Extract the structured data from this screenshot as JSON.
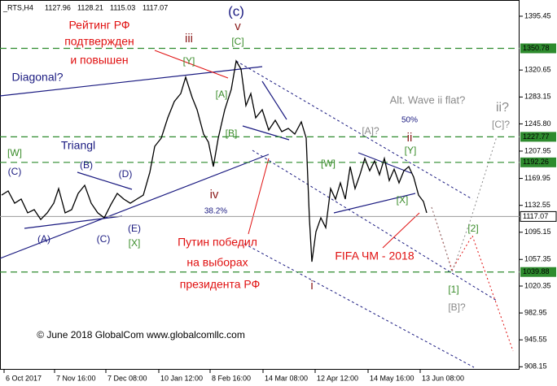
{
  "chart_data": {
    "type": "line",
    "symbol": "_RTS,H4",
    "ohlc": [
      1127.96,
      1128.21,
      1115.03,
      1117.07
    ],
    "xlim": [
      0,
      638
    ],
    "ylim": [
      904,
      1418
    ],
    "xticks": [
      {
        "value": 5,
        "label": "6 Oct 2017"
      },
      {
        "value": 67,
        "label": "7 Nov 16:00"
      },
      {
        "value": 130,
        "label": "7 Dec 08:00"
      },
      {
        "value": 195,
        "label": "10 Jan 12:00"
      },
      {
        "value": 258,
        "label": "8 Feb 16:00"
      },
      {
        "value": 323,
        "label": "14 Mar 08:00"
      },
      {
        "value": 387,
        "label": "12 Apr 12:00"
      },
      {
        "value": 452,
        "label": "14 May 16:00"
      },
      {
        "value": 516,
        "label": "13 Jun 08:00"
      }
    ],
    "yticks": [
      1395.45,
      1320.65,
      1283.15,
      {
        "value": 1245.8,
        "label": "1245.80"
      },
      1207.95,
      1169.95,
      1132.55,
      1095.15,
      1057.35,
      1020.35,
      982.95,
      945.55,
      908.15
    ],
    "levels": [
      1350.78,
      1227.77,
      1192.26,
      1039.88
    ],
    "level_color": "#2e8b2e",
    "grid": false,
    "x": [
      2,
      10,
      18,
      26,
      34,
      42,
      50,
      58,
      66,
      72,
      80,
      88,
      96,
      104,
      112,
      120,
      128,
      136,
      144,
      152,
      160,
      168,
      176,
      184,
      190,
      198,
      206,
      214,
      222,
      228,
      236,
      242,
      250,
      256,
      262,
      268,
      276,
      284,
      290,
      296,
      302,
      308,
      314,
      322,
      330,
      338,
      346,
      354,
      362,
      370,
      376,
      380,
      383,
      388,
      394,
      400,
      406,
      412,
      418,
      424,
      430,
      436,
      442,
      448,
      454,
      460,
      466,
      472,
      478,
      484,
      490,
      496,
      502,
      508,
      514,
      520,
      524
    ],
    "series": [
      {
        "color": "#000000",
        "values": [
          1146.8,
          1152.5,
          1135.5,
          1141.2,
          1122.1,
          1126.5,
          1112.9,
          1122.1,
          1135.5,
          1155.8,
          1122.1,
          1126.5,
          1149.1,
          1160.4,
          1135.5,
          1122.1,
          1115.2,
          1133.2,
          1149.1,
          1141.2,
          1135.5,
          1141.2,
          1146.8,
          1178.4,
          1214.6,
          1225.9,
          1254.2,
          1276.8,
          1288.0,
          1310.7,
          1282.4,
          1265.5,
          1231.6,
          1220.3,
          1186.4,
          1225.9,
          1265.5,
          1293.7,
          1333.3,
          1322.0,
          1271.1,
          1288.0,
          1254.2,
          1265.5,
          1237.2,
          1250.8,
          1235.0,
          1239.5,
          1231.6,
          1248.5,
          1225.9,
          1112.9,
          1054.1,
          1095.9,
          1115.2,
          1101.6,
          1155.8,
          1141.2,
          1163.8,
          1141.2,
          1186.4,
          1155.8,
          1175.1,
          1197.7,
          1180.7,
          1194.3,
          1175.1,
          1197.7,
          1167.1,
          1182.9,
          1163.8,
          1180.7,
          1186.4,
          1171.7,
          1146.8,
          1137.8,
          1122.1
        ]
      }
    ],
    "annotations": [
      {
        "text": "(c)",
        "color": "#1a1a80"
      },
      {
        "text": "v",
        "color": "#8b1a1a"
      },
      {
        "text": "[C]",
        "color": "#3a8c2a"
      },
      {
        "text": "iii",
        "color": "#8b1a1a"
      },
      {
        "text": "[Y]",
        "color": "#3a8c2a"
      },
      {
        "text": "[A]",
        "color": "#3a8c2a"
      },
      {
        "text": "[B]",
        "color": "#3a8c2a"
      },
      {
        "text": "Рейтинг РФ",
        "color": "#e01010"
      },
      {
        "text": "подтвержден",
        "color": "#e01010"
      },
      {
        "text": "и повышен",
        "color": "#e01010"
      },
      {
        "text": "Diagonal?",
        "color": "#1a1a80"
      },
      {
        "text": "[W]",
        "color": "#3a8c2a"
      },
      {
        "text": "(C)",
        "color": "#1a1a80"
      },
      {
        "text": "Triangl",
        "color": "#1a1a80"
      },
      {
        "text": "(B)",
        "color": "#1a1a80"
      },
      {
        "text": "(D)",
        "color": "#1a1a80"
      },
      {
        "text": "(A)",
        "color": "#1a1a80"
      },
      {
        "text": "(C)",
        "color": "#1a1a80"
      },
      {
        "text": "(E)",
        "color": "#1a1a80"
      },
      {
        "text": "[X]",
        "color": "#3a8c2a"
      },
      {
        "text": "iv",
        "color": "#8b1a1a"
      },
      {
        "text": "38.2%",
        "color": "#1a1a80"
      },
      {
        "text": "Путин победил",
        "color": "#e01010"
      },
      {
        "text": "на выборах",
        "color": "#e01010"
      },
      {
        "text": "президента РФ",
        "color": "#e01010"
      },
      {
        "text": "i",
        "color": "#8b1a1a"
      },
      {
        "text": "Alt. Wave ii flat?",
        "color": "#8a8a8a"
      },
      {
        "text": "50%",
        "color": "#1a1a80"
      },
      {
        "text": "[A]?",
        "color": "#8a8a8a"
      },
      {
        "text": "ii",
        "color": "#8b1a1a"
      },
      {
        "text": "[Y]",
        "color": "#3a8c2a"
      },
      {
        "text": "[W]",
        "color": "#3a8c2a"
      },
      {
        "text": "[X]",
        "color": "#3a8c2a"
      },
      {
        "text": "FIFA ЧМ - 2018",
        "color": "#e01010"
      },
      {
        "text": "ii?",
        "color": "#8a8a8a"
      },
      {
        "text": "[C]?",
        "color": "#8a8a8a"
      },
      {
        "text": "[2]",
        "color": "#3a8c2a"
      },
      {
        "text": "[1]",
        "color": "#3a8c2a"
      },
      {
        "text": "[B]?",
        "color": "#8a8a8a"
      },
      {
        "text": "© June 2018 GlobalCom www.globalcomllc.com",
        "color": "#000000"
      }
    ]
  }
}
